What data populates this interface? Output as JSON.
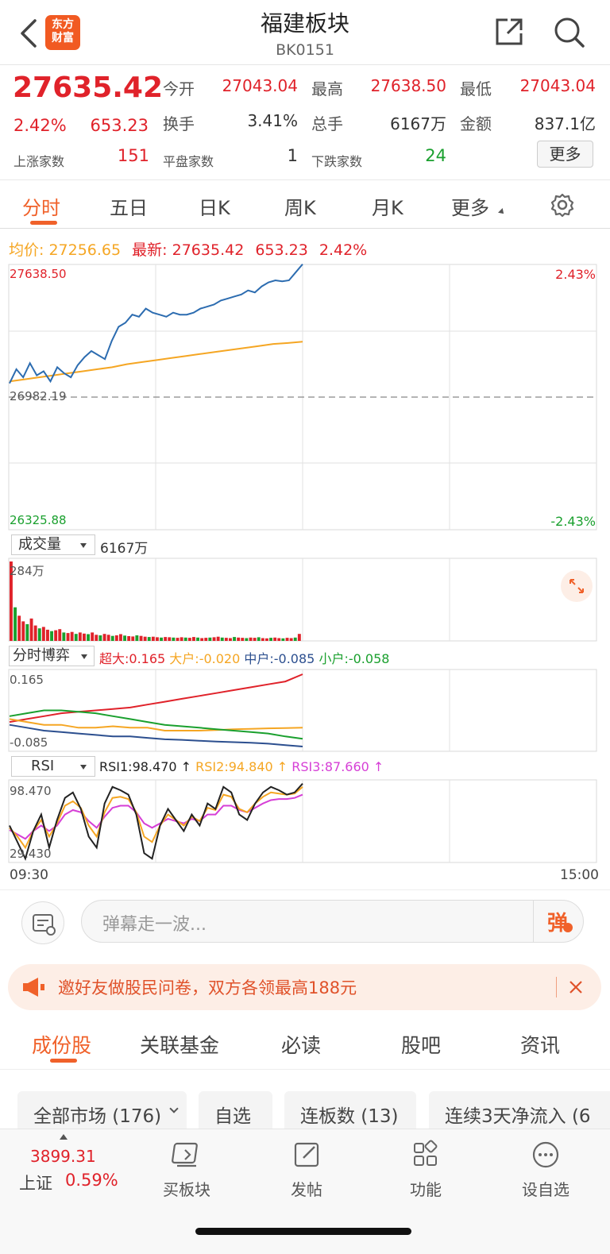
{
  "header": {
    "title": "福建板块",
    "code": "BK0151",
    "logo_text": "东方财富"
  },
  "quote": {
    "price": "27635.42",
    "change_pct": "2.42%",
    "change": "653.23",
    "open_label": "今开",
    "open": "27043.04",
    "high_label": "最高",
    "high": "27638.50",
    "low_label": "最低",
    "low": "27043.04",
    "turnover_label": "换手",
    "turnover": "3.41%",
    "volume_label": "总手",
    "volume": "6167万",
    "amount_label": "金额",
    "amount": "837.1亿",
    "up_label": "上涨家数",
    "up_count": "151",
    "flat_label": "平盘家数",
    "flat_count": "1",
    "down_label": "下跌家数",
    "down_count": "24",
    "more_button": "更多"
  },
  "tabs": [
    "分时",
    "五日",
    "日K",
    "周K",
    "月K",
    "更多"
  ],
  "chart_info": {
    "avg_label": "均价:",
    "avg_value": "27256.65",
    "latest_label": "最新:",
    "latest_value": "27635.42",
    "latest_change": "653.23",
    "latest_pct": "2.42%"
  },
  "price_panel": {
    "top_value": "27638.50",
    "mid_value": "26982.19",
    "bottom_value": "26325.88",
    "top_pct": "2.43%",
    "bottom_pct": "-2.43%"
  },
  "volume_panel": {
    "selector": "成交量",
    "total": "6167万",
    "max_label": "284万"
  },
  "bojue_panel": {
    "selector": "分时博弈",
    "super_label": "超大:0.165",
    "large_label": "大户:-0.020",
    "mid_label": "中户:-0.085",
    "small_label": "小户:-0.058",
    "top_value": "0.165",
    "bottom_value": "-0.085"
  },
  "rsi_panel": {
    "selector": "RSI",
    "rsi1": "RSI1:98.470 ↑",
    "rsi2": "RSI2:94.840 ↑",
    "rsi3": "RSI3:87.660 ↑",
    "top_value": "98.470",
    "bottom_value": "29.430"
  },
  "time_axis": {
    "start": "09:30",
    "end": "15:00"
  },
  "comment_bar": {
    "placeholder": "弹幕走一波...",
    "danmu_button": "弹"
  },
  "banner": {
    "text": "邀好友做股民问卷，双方各领最高188元"
  },
  "sub_tabs": [
    "成份股",
    "关联基金",
    "必读",
    "股吧",
    "资讯"
  ],
  "filters": [
    "全部市场 (176)",
    "自选",
    "连板数 (13)",
    "连续3天净流入 (6"
  ],
  "bottom_nav": {
    "index_value": "3899.31",
    "index_name": "上证",
    "index_pct": "0.59%",
    "items": [
      "买板块",
      "发帖",
      "功能",
      "设自选"
    ]
  },
  "colors": {
    "up": "#e0222a",
    "down": "#1aa02e",
    "avg_line": "#f5a623",
    "price_line": "#2c6cb0",
    "accent": "#f0612a"
  },
  "chart_data": [
    {
      "type": "line",
      "title": "",
      "x_range": [
        "09:30",
        "15:00"
      ],
      "ylim": [
        26325.88,
        27638.5
      ],
      "reference": 26982.19,
      "series": [
        {
          "values": [
            27050,
            27120,
            27080,
            27150,
            27090,
            27110,
            27060,
            27130,
            27100,
            27080,
            27140,
            27180,
            27210,
            27190,
            27170,
            27260,
            27330,
            27350,
            27390,
            27380,
            27420,
            27400,
            27390,
            27380,
            27400,
            27390,
            27390,
            27400,
            27420,
            27430,
            27440,
            27460,
            27470,
            27480,
            27490,
            27510,
            27500,
            27530,
            27550,
            27560,
            27555,
            27560,
            27600,
            27640
          ]
        },
        {
          "values": [
            27060,
            27070,
            27080,
            27090,
            27100,
            27110,
            27120,
            27130,
            27145,
            27155,
            27165,
            27175,
            27185,
            27195,
            27205,
            27215,
            27225,
            27235,
            27245,
            27250,
            27256
          ]
        }
      ]
    },
    {
      "type": "bar",
      "title": "",
      "ylim": [
        0,
        284
      ],
      "values": [
        284,
        120,
        90,
        70,
        60,
        80,
        55,
        45,
        50,
        40,
        35,
        38,
        42,
        30,
        28,
        32,
        25,
        30,
        26,
        24,
        30,
        22,
        20,
        25,
        22,
        18,
        20,
        24,
        19,
        17,
        16,
        20,
        18,
        15,
        14,
        15,
        13,
        12,
        14,
        13,
        12,
        11,
        13,
        12,
        11,
        14,
        12,
        10,
        11,
        12,
        13,
        15,
        12,
        11,
        10,
        14,
        12,
        11,
        10,
        12,
        11,
        13,
        10,
        9,
        11,
        12,
        10,
        9,
        11,
        10,
        12,
        25
      ]
    },
    {
      "type": "line",
      "title": "",
      "ylim": [
        -0.085,
        0.165
      ],
      "series": [
        {
          "name": "超大",
          "values": [
            0.0,
            0.01,
            0.02,
            0.03,
            0.035,
            0.04,
            0.045,
            0.05,
            0.06,
            0.07,
            0.08,
            0.09,
            0.1,
            0.11,
            0.12,
            0.13,
            0.14,
            0.165
          ]
        },
        {
          "name": "大户",
          "values": [
            0.01,
            0.0,
            -0.01,
            -0.01,
            -0.02,
            -0.02,
            -0.015,
            -0.02,
            -0.02,
            -0.03,
            -0.03,
            -0.03,
            -0.028,
            -0.025,
            -0.024,
            -0.022,
            -0.021,
            -0.02
          ]
        },
        {
          "name": "中户",
          "values": [
            -0.01,
            -0.02,
            -0.03,
            -0.035,
            -0.04,
            -0.045,
            -0.05,
            -0.05,
            -0.055,
            -0.06,
            -0.062,
            -0.065,
            -0.068,
            -0.07,
            -0.072,
            -0.075,
            -0.08,
            -0.085
          ]
        },
        {
          "name": "小户",
          "values": [
            0.02,
            0.03,
            0.04,
            0.04,
            0.035,
            0.03,
            0.02,
            0.01,
            0.0,
            -0.01,
            -0.015,
            -0.02,
            -0.025,
            -0.03,
            -0.035,
            -0.04,
            -0.05,
            -0.058
          ]
        }
      ]
    },
    {
      "type": "line",
      "title": "",
      "ylim": [
        29.43,
        98.47
      ],
      "series": [
        {
          "name": "RSI1",
          "values": [
            60,
            45,
            30,
            55,
            70,
            40,
            65,
            85,
            90,
            75,
            50,
            40,
            80,
            95,
            92,
            88,
            70,
            35,
            30,
            60,
            75,
            65,
            55,
            70,
            60,
            80,
            75,
            95,
            90,
            70,
            65,
            80,
            90,
            95,
            92,
            88,
            90,
            98
          ]
        },
        {
          "name": "RSI2",
          "values": [
            58,
            50,
            40,
            55,
            65,
            50,
            62,
            78,
            82,
            76,
            60,
            50,
            72,
            85,
            86,
            84,
            72,
            50,
            45,
            60,
            70,
            65,
            60,
            68,
            64,
            76,
            74,
            88,
            86,
            75,
            72,
            80,
            86,
            90,
            89,
            88,
            89,
            95
          ]
        },
        {
          "name": "RSI3",
          "values": [
            56,
            52,
            48,
            55,
            60,
            55,
            60,
            70,
            74,
            72,
            64,
            58,
            68,
            76,
            78,
            78,
            72,
            62,
            58,
            62,
            66,
            64,
            62,
            66,
            64,
            70,
            70,
            78,
            78,
            74,
            72,
            76,
            80,
            83,
            84,
            84,
            85,
            88
          ]
        }
      ]
    }
  ]
}
